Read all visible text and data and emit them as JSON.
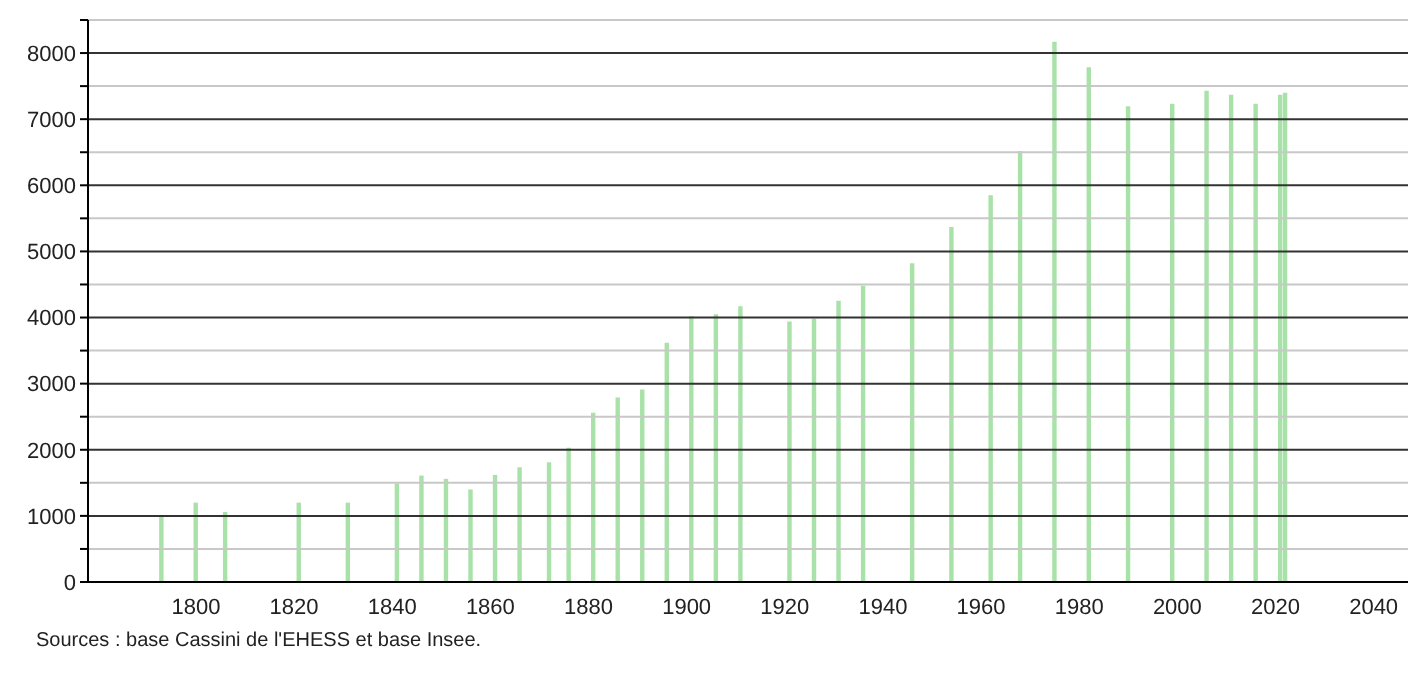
{
  "chart_data": {
    "type": "bar",
    "x": [
      1793,
      1800,
      1806,
      1821,
      1831,
      1841,
      1846,
      1851,
      1856,
      1861,
      1866,
      1872,
      1876,
      1881,
      1886,
      1891,
      1896,
      1901,
      1906,
      1911,
      1921,
      1926,
      1931,
      1936,
      1946,
      1954,
      1962,
      1968,
      1975,
      1982,
      1990,
      1999,
      2006,
      2011,
      2016,
      2021,
      2022
    ],
    "values": [
      1000,
      1200,
      1060,
      1200,
      1200,
      1490,
      1610,
      1560,
      1400,
      1620,
      1735,
      1810,
      2030,
      2560,
      2790,
      2910,
      3620,
      4020,
      4050,
      4170,
      3940,
      3980,
      4255,
      4480,
      4820,
      5370,
      5850,
      6520,
      8170,
      7785,
      7195,
      7235,
      7430,
      7370,
      7235,
      7370,
      7400
    ],
    "color": "#a8e2a8",
    "xlim": [
      1778,
      2047
    ],
    "xticks": [
      1800,
      1820,
      1840,
      1860,
      1880,
      1900,
      1920,
      1940,
      1960,
      1980,
      2000,
      2020,
      2040
    ],
    "ylim": [
      0,
      8500
    ],
    "yticks": [
      0,
      {
        "value": 500,
        "label": null
      },
      1000,
      {
        "value": 1500,
        "label": null
      },
      2000,
      {
        "value": 2500,
        "label": null
      },
      3000,
      {
        "value": 3500,
        "label": null
      },
      4000,
      {
        "value": 4500,
        "label": null
      },
      5000,
      {
        "value": 5500,
        "label": null
      },
      6000,
      {
        "value": 6500,
        "label": null
      },
      7000,
      {
        "value": 7500,
        "label": null
      },
      8000,
      {
        "value": 8500,
        "label": null
      }
    ],
    "grid": "y",
    "annotations": [
      "Sources : base Cassini de l'EHESS et base Insee."
    ]
  }
}
